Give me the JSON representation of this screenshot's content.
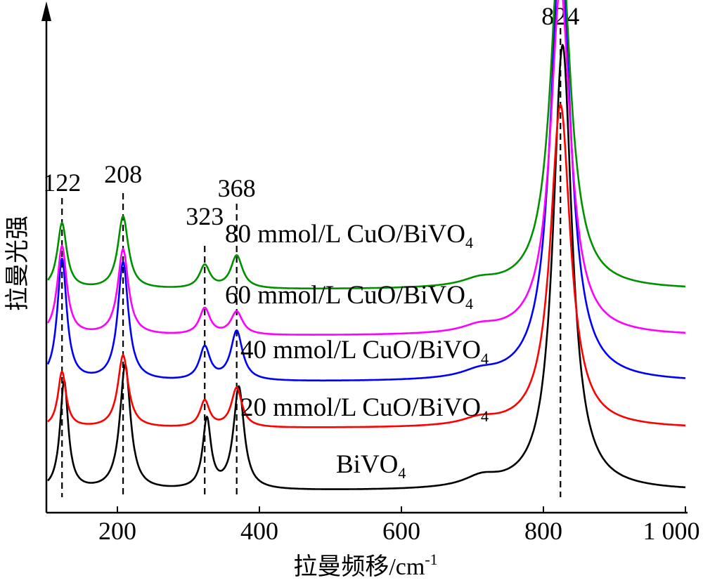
{
  "chart_data": {
    "type": "line",
    "title": "",
    "xlabel": "拉曼频移/cm",
    "xlabel_sup": "-1",
    "ylabel": "拉曼光强",
    "xlim": [
      100,
      1000
    ],
    "x_ticks": [
      {
        "value": 200,
        "label": "200"
      },
      {
        "value": 400,
        "label": "400"
      },
      {
        "value": 600,
        "label": "600"
      },
      {
        "value": 800,
        "label": "800"
      },
      {
        "value": 1000,
        "label": "1 000"
      }
    ],
    "y_ticks": false,
    "grid": false,
    "peak_markers": [
      {
        "x": 122,
        "label": "122"
      },
      {
        "x": 208,
        "label": "208"
      },
      {
        "x": 323,
        "label": "323"
      },
      {
        "x": 368,
        "label": "368"
      },
      {
        "x": 824,
        "label": "824"
      }
    ],
    "series": [
      {
        "name": "BiVO",
        "subscript": "4",
        "color": "#000000",
        "baseline": 0.05,
        "peak_shift": 3,
        "peaks": [
          [
            122,
            0.33,
            7
          ],
          [
            208,
            0.38,
            9
          ],
          [
            323,
            0.21,
            7
          ],
          [
            368,
            0.31,
            9
          ],
          [
            710,
            0.03,
            30
          ],
          [
            824,
            1.35,
            16
          ]
        ]
      },
      {
        "name": "20 mmol/L CuO/BiVO",
        "subscript": "4",
        "color": "#ff0000",
        "baseline": 0.24,
        "peak_shift": 0,
        "peaks": [
          [
            122,
            0.17,
            7
          ],
          [
            208,
            0.22,
            9
          ],
          [
            323,
            0.08,
            8
          ],
          [
            368,
            0.12,
            9
          ],
          [
            710,
            0.02,
            30
          ],
          [
            824,
            0.98,
            17
          ]
        ]
      },
      {
        "name": "40 mmol/L CuO/BiVO",
        "subscript": "4",
        "color": "#0000ff",
        "baseline": 0.38,
        "peak_shift": 0,
        "peaks": [
          [
            122,
            0.37,
            8
          ],
          [
            208,
            0.36,
            9
          ],
          [
            323,
            0.1,
            9
          ],
          [
            368,
            0.15,
            10
          ],
          [
            710,
            0.02,
            30
          ],
          [
            824,
            1.33,
            17
          ]
        ]
      },
      {
        "name": "60 mmol/L CuO/BiVO",
        "subscript": "4",
        "color": "#ff00ff",
        "baseline": 0.52,
        "peak_shift": 0,
        "peaks": [
          [
            122,
            0.27,
            8
          ],
          [
            208,
            0.26,
            9
          ],
          [
            323,
            0.08,
            9
          ],
          [
            368,
            0.07,
            10
          ],
          [
            710,
            0.02,
            30
          ],
          [
            824,
            1.06,
            17
          ]
        ]
      },
      {
        "name": "80 mmol/L CuO/BiVO",
        "subscript": "4",
        "color": "#009000",
        "baseline": 0.66,
        "peak_shift": 0,
        "peaks": [
          [
            122,
            0.2,
            8
          ],
          [
            208,
            0.22,
            9
          ],
          [
            323,
            0.07,
            9
          ],
          [
            368,
            0.1,
            10
          ],
          [
            710,
            0.02,
            30
          ],
          [
            824,
            1.08,
            17
          ]
        ]
      }
    ]
  }
}
